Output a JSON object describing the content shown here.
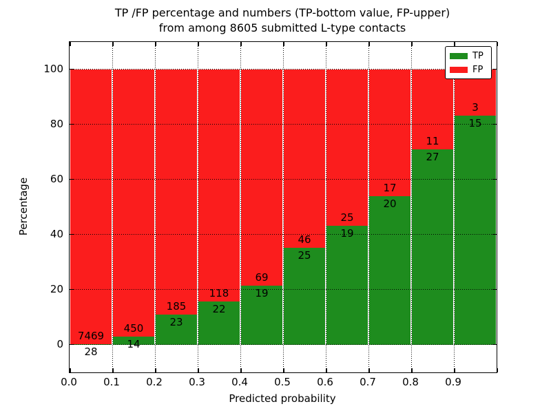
{
  "title": {
    "line1": "TP /FP percentage and numbers (TP-bottom value, FP-upper)",
    "line2": "from among 8605 submitted L-type contacts"
  },
  "axes": {
    "xlabel": "Predicted probability",
    "ylabel": "Percentage",
    "xtick_labels": [
      "0.0",
      "0.1",
      "0.2",
      "0.3",
      "0.4",
      "0.5",
      "0.6",
      "0.7",
      "0.8",
      "0.9"
    ],
    "ytick_labels": [
      "0",
      "20",
      "40",
      "60",
      "80",
      "100"
    ]
  },
  "legend": {
    "items": [
      {
        "label": "TP",
        "color": "#1e8c1e"
      },
      {
        "label": "FP",
        "color": "#fb1d1d"
      }
    ]
  },
  "colors": {
    "tp": "#1e8c1e",
    "fp": "#fb1d1d",
    "grid": "#000000",
    "frame": "#000000"
  },
  "chart_data": {
    "type": "bar",
    "variant": "stacked-percentage",
    "title": "TP /FP percentage and numbers (TP-bottom value, FP-upper) from among 8605 submitted L-type contacts",
    "xlabel": "Predicted probability",
    "ylabel": "Percentage",
    "bin_width": 0.1,
    "categories": [
      "0.0",
      "0.1",
      "0.2",
      "0.3",
      "0.4",
      "0.5",
      "0.6",
      "0.7",
      "0.8",
      "0.9"
    ],
    "series": [
      {
        "name": "TP",
        "counts": [
          28,
          14,
          23,
          22,
          19,
          25,
          19,
          20,
          27,
          15
        ],
        "percent": [
          0.4,
          3.0,
          11.1,
          15.7,
          21.6,
          35.2,
          43.2,
          54.1,
          71.1,
          83.3
        ],
        "color": "#1e8c1e"
      },
      {
        "name": "FP",
        "counts": [
          7469,
          450,
          185,
          118,
          69,
          46,
          25,
          17,
          11,
          3
        ],
        "percent": [
          99.6,
          97.0,
          88.9,
          84.3,
          78.4,
          64.8,
          56.8,
          45.9,
          28.9,
          16.7
        ],
        "color": "#fb1d1d"
      }
    ],
    "total_contacts": 8605,
    "xlim": [
      0.0,
      1.0
    ],
    "ylim": [
      -10,
      110
    ],
    "yticks": [
      0,
      20,
      40,
      60,
      80,
      100
    ],
    "grid": true,
    "grid_style": "dotted",
    "legend_position": "upper right"
  }
}
